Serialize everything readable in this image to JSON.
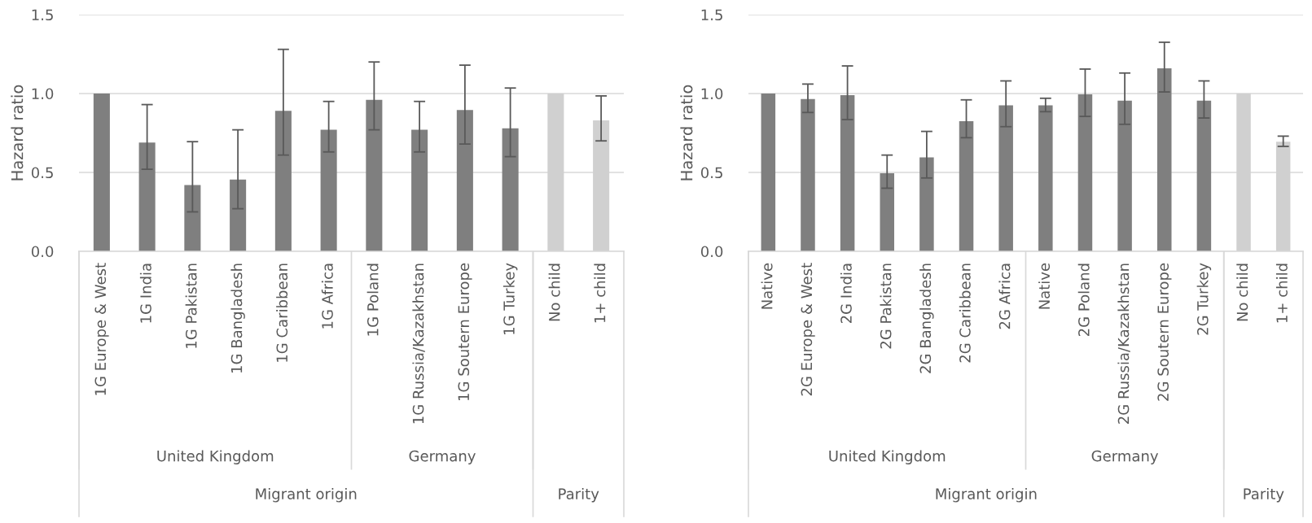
{
  "chart_data": [
    {
      "type": "bar",
      "ylabel": "Hazard ratio",
      "categories": [
        "1G Europe & West",
        "1G India",
        "1G Pakistan",
        "1G Bangladesh",
        "1G Caribbean",
        "1G Africa",
        "1G Poland",
        "1G Russia/Kazakhstan",
        "1G Soutern Europe",
        "1G Turkey",
        "No child",
        "1+ child"
      ],
      "values": [
        1.0,
        0.69,
        0.42,
        0.455,
        0.89,
        0.77,
        0.96,
        0.77,
        0.895,
        0.78,
        1.0,
        0.83
      ],
      "errors": [
        null,
        [
          0.52,
          0.93
        ],
        [
          0.25,
          0.695
        ],
        [
          0.27,
          0.77
        ],
        [
          0.61,
          1.28
        ],
        [
          0.63,
          0.95
        ],
        [
          0.77,
          1.2
        ],
        [
          0.63,
          0.95
        ],
        [
          0.68,
          1.18
        ],
        [
          0.6,
          1.035
        ],
        null,
        [
          0.7,
          0.985
        ]
      ],
      "colors": [
        "#7f7f7f",
        "#7f7f7f",
        "#7f7f7f",
        "#7f7f7f",
        "#7f7f7f",
        "#7f7f7f",
        "#7f7f7f",
        "#7f7f7f",
        "#7f7f7f",
        "#7f7f7f",
        "#d0d0d0",
        "#d0d0d0"
      ],
      "ylim": [
        0,
        1.5
      ],
      "yticks": [
        {
          "value": 0,
          "label": "0.0"
        },
        {
          "value": 0.5,
          "label": "0.5"
        },
        {
          "value": 1,
          "label": "1.0"
        },
        {
          "value": 1.5,
          "label": "1.5"
        }
      ],
      "grid": "y",
      "annotations": [
        "United Kingdom",
        "Germany",
        "Migrant origin",
        "Parity"
      ]
    },
    {
      "type": "bar",
      "ylabel": "Hazard ratio",
      "categories": [
        "Native",
        "2G Europe & West",
        "2G India",
        "2G Pakistan",
        "2G Bangladesh",
        "2G Caribbean",
        "2G Africa",
        "Native",
        "2G Poland",
        "2G Russia/Kazakhstan",
        "2G Soutern Europe",
        "2G Turkey",
        "No child",
        "1+ child"
      ],
      "values": [
        1.0,
        0.965,
        0.99,
        0.495,
        0.595,
        0.825,
        0.925,
        0.925,
        0.995,
        0.955,
        1.16,
        0.955,
        1.0,
        0.695
      ],
      "errors": [
        null,
        [
          0.88,
          1.06
        ],
        [
          0.835,
          1.175
        ],
        [
          0.4,
          0.61
        ],
        [
          0.465,
          0.76
        ],
        [
          0.72,
          0.96
        ],
        [
          0.79,
          1.08
        ],
        [
          0.885,
          0.97
        ],
        [
          0.855,
          1.155
        ],
        [
          0.805,
          1.13
        ],
        [
          1.01,
          1.325
        ],
        [
          0.845,
          1.08
        ],
        null,
        [
          0.665,
          0.73
        ]
      ],
      "colors": [
        "#7f7f7f",
        "#7f7f7f",
        "#7f7f7f",
        "#7f7f7f",
        "#7f7f7f",
        "#7f7f7f",
        "#7f7f7f",
        "#7f7f7f",
        "#7f7f7f",
        "#7f7f7f",
        "#7f7f7f",
        "#7f7f7f",
        "#d0d0d0",
        "#d0d0d0"
      ],
      "ylim": [
        0,
        1.5
      ],
      "yticks": [
        {
          "value": 0,
          "label": "0.0"
        },
        {
          "value": 0.5,
          "label": "0.5"
        },
        {
          "value": 1,
          "label": "1.0"
        },
        {
          "value": 1.5,
          "label": "1.5"
        }
      ],
      "grid": "y",
      "annotations": [
        "United Kingdom",
        "Germany",
        "Migrant origin",
        "Parity"
      ]
    }
  ]
}
